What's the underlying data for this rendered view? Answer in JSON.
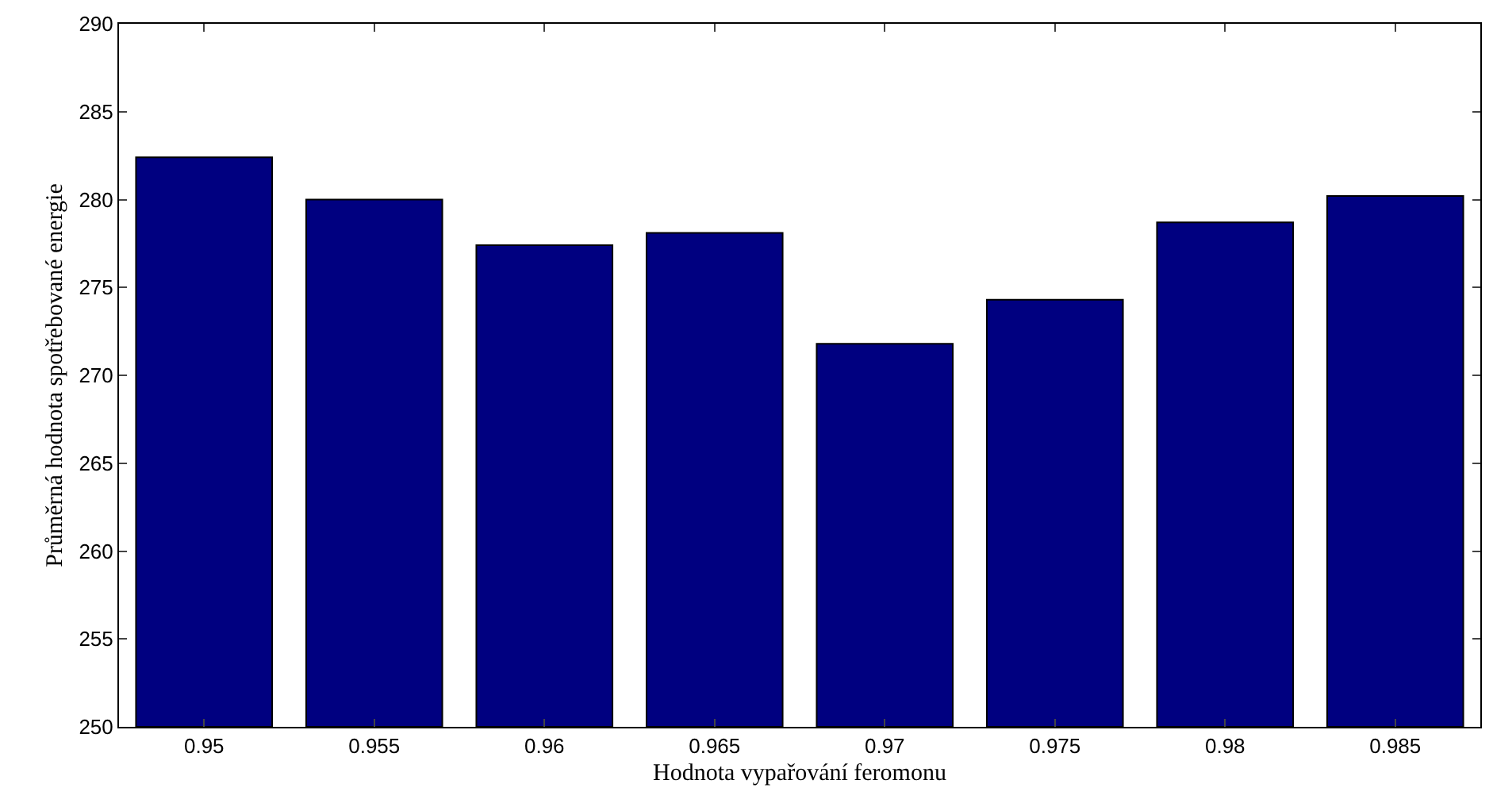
{
  "chart_data": {
    "type": "bar",
    "xlabel": "Hodnota vypařování feromonu",
    "ylabel": "Průměrná hodnota spotřebované energie",
    "categories": [
      "0.95",
      "0.955",
      "0.96",
      "0.965",
      "0.97",
      "0.975",
      "0.98",
      "0.985"
    ],
    "values": [
      282.4,
      280.0,
      277.4,
      278.1,
      271.8,
      274.3,
      278.7,
      280.2
    ],
    "color": "#000080",
    "ylim": [
      250,
      290
    ],
    "yticks": [
      250,
      255,
      260,
      265,
      270,
      275,
      280,
      285,
      290
    ]
  }
}
